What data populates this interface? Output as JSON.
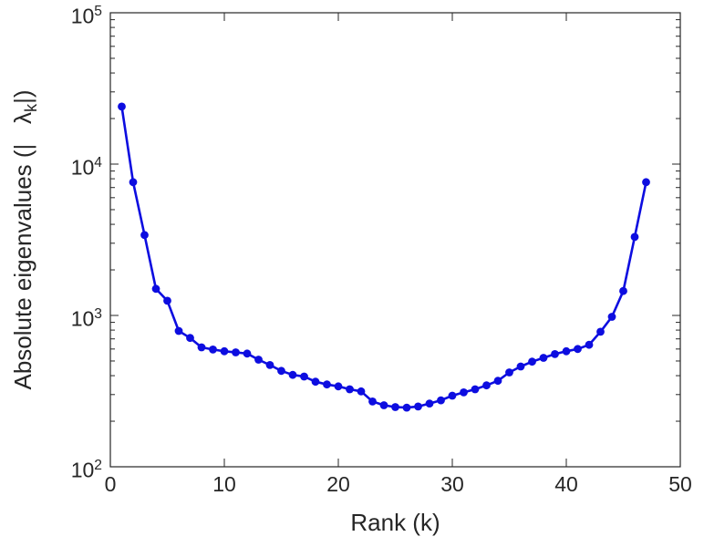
{
  "chart_data": {
    "type": "line",
    "title": "",
    "xlabel": "Rank (k)",
    "ylabel": "Absolute eigenvalues (| λ_k |)",
    "ylabel_parts": {
      "prefix": "Absolute eigenvalues (|   ",
      "symbol": "λ",
      "subscript": "k",
      "suffix": "|)"
    },
    "x_axis": {
      "ticks": [
        0,
        10,
        20,
        30,
        40,
        50
      ],
      "tick_labels": [
        "0",
        "10",
        "20",
        "30",
        "40",
        "50"
      ],
      "lim": [
        0,
        50
      ],
      "scale": "linear"
    },
    "y_axis": {
      "scale": "log",
      "tick_base": "10",
      "tick_exponents": [
        2,
        3,
        4,
        5
      ],
      "lim_exponents": [
        2,
        5
      ]
    },
    "grid": false,
    "legend": null,
    "marker": "circle",
    "line_color": "#0d0de0",
    "axis_color": "#262626",
    "x": [
      1,
      2,
      3,
      4,
      5,
      6,
      7,
      8,
      9,
      10,
      11,
      12,
      13,
      14,
      15,
      16,
      17,
      18,
      19,
      20,
      21,
      22,
      23,
      24,
      25,
      26,
      27,
      28,
      29,
      30,
      31,
      32,
      33,
      34,
      35,
      36,
      37,
      38,
      39,
      40,
      41,
      42,
      43,
      44,
      45,
      46,
      47
    ],
    "values": [
      24000,
      7600,
      3400,
      1500,
      1250,
      790,
      710,
      615,
      595,
      580,
      570,
      560,
      510,
      470,
      430,
      405,
      395,
      365,
      350,
      340,
      325,
      315,
      270,
      255,
      248,
      246,
      250,
      262,
      275,
      295,
      310,
      325,
      345,
      370,
      420,
      460,
      495,
      525,
      555,
      580,
      600,
      640,
      780,
      980,
      1450,
      3300,
      7600
    ]
  }
}
